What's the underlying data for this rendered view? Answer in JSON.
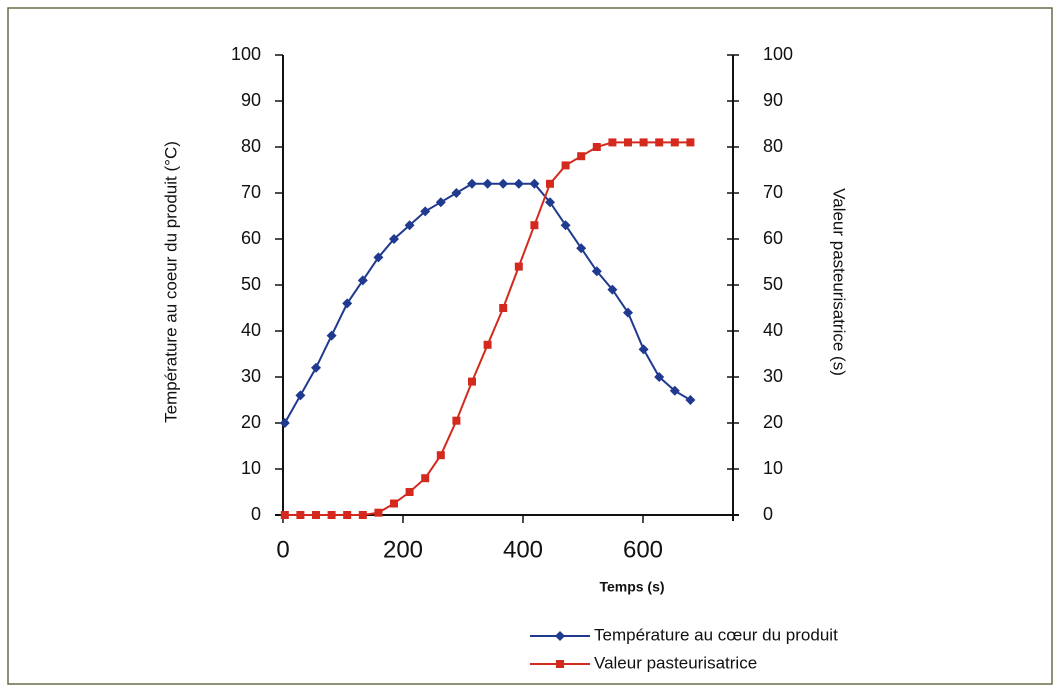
{
  "chart_data": {
    "type": "line",
    "y_label": "Température au coeur du produit (°C)",
    "y2_label": "Valeur pasteurisatrice (s)",
    "x_label": "Temps (s)",
    "x": [
      3,
      29,
      55,
      81,
      107,
      133,
      159,
      185,
      211,
      237,
      263,
      289,
      315,
      341,
      367,
      393,
      419,
      445,
      471,
      497,
      523,
      549,
      575,
      601,
      627,
      653,
      679
    ],
    "series": [
      {
        "name": "Température au cœur du produit",
        "color": "#1f3a8f",
        "marker": "diamond",
        "values": [
          20,
          26,
          32,
          39,
          46,
          51,
          56,
          60,
          63,
          66,
          68,
          70,
          72,
          72,
          72,
          72,
          72,
          68,
          63,
          58,
          53,
          49,
          44,
          36,
          30,
          27,
          25
        ]
      },
      {
        "name": "Valeur pasteurisatrice",
        "color": "#d42a1e",
        "marker": "square",
        "axis": "y2",
        "values": [
          0,
          0,
          0,
          0,
          0,
          0,
          0.5,
          2.5,
          5,
          8,
          13,
          20.5,
          29,
          37,
          45,
          54,
          63,
          72,
          76,
          78,
          80,
          81,
          81,
          81,
          81,
          81,
          81
        ]
      }
    ],
    "xlim": [
      0,
      750
    ],
    "xticks": [
      0,
      200,
      400,
      600
    ],
    "ylim": [
      0,
      100
    ],
    "yticks": [
      0,
      10,
      20,
      30,
      40,
      50,
      60,
      70,
      80,
      90,
      100
    ],
    "y2lim": [
      0,
      100
    ],
    "y2ticks": [
      0,
      10,
      20,
      30,
      40,
      50,
      60,
      70,
      80,
      90,
      100
    ],
    "legend": "bottom-right"
  }
}
